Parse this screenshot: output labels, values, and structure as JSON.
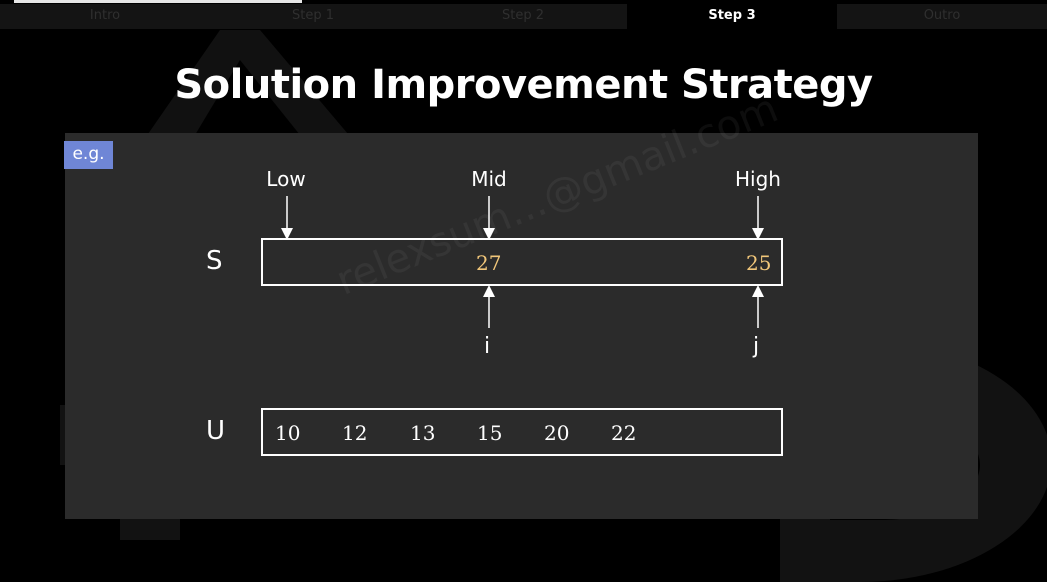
{
  "tabs": [
    {
      "label": "Intro",
      "active": false
    },
    {
      "label": "Step 1",
      "active": false
    },
    {
      "label": "Step 2",
      "active": false
    },
    {
      "label": "Step 3",
      "active": true
    },
    {
      "label": "Outro",
      "active": false
    }
  ],
  "title": "Solution Improvement Strategy",
  "tag": "e.g.",
  "pointers": {
    "low": "Low",
    "mid": "Mid",
    "high": "High"
  },
  "arrays": {
    "s": {
      "label": "S",
      "values": [
        "27",
        "25"
      ]
    },
    "u": {
      "label": "U",
      "values": [
        "10",
        "12",
        "13",
        "15",
        "20",
        "22"
      ]
    }
  },
  "index_labels": {
    "i": "i",
    "j": "j"
  },
  "watermark": "relexsum...@gmail.com",
  "colors": {
    "highlight": "#f2c77a",
    "tag_bg": "#6f86d6",
    "panel": "#2b2b2b"
  }
}
